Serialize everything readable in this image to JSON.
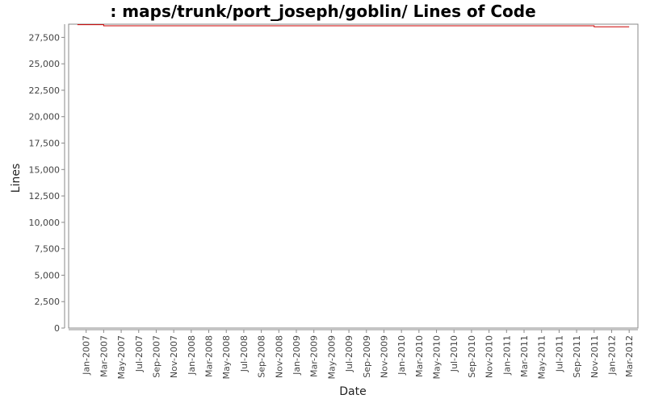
{
  "chart_data": {
    "type": "line",
    "title": ": maps/trunk/port_joseph/goblin/ Lines of Code",
    "xlabel": "Date",
    "ylabel": "Lines",
    "ylim": [
      0,
      28750
    ],
    "yticks": [
      0,
      2500,
      5000,
      7500,
      10000,
      12500,
      15000,
      17500,
      20000,
      22500,
      25000,
      27500
    ],
    "ytick_labels": [
      "0",
      "2,500",
      "5,000",
      "7,500",
      "10,000",
      "12,500",
      "15,000",
      "17,500",
      "20,000",
      "22,500",
      "25,000",
      "27,500"
    ],
    "xlim": [
      "2006-11",
      "2012-04"
    ],
    "xticks": [
      "2007-01",
      "2007-03",
      "2007-05",
      "2007-07",
      "2007-09",
      "2007-11",
      "2008-01",
      "2008-03",
      "2008-05",
      "2008-07",
      "2008-09",
      "2008-11",
      "2009-01",
      "2009-03",
      "2009-05",
      "2009-07",
      "2009-09",
      "2009-11",
      "2010-01",
      "2010-03",
      "2010-05",
      "2010-07",
      "2010-09",
      "2010-11",
      "2011-01",
      "2011-03",
      "2011-05",
      "2011-07",
      "2011-09",
      "2011-11",
      "2012-01",
      "2012-03"
    ],
    "xtick_labels": [
      "Jan-2007",
      "Mar-2007",
      "May-2007",
      "Jul-2007",
      "Sep-2007",
      "Nov-2007",
      "Jan-2008",
      "Mar-2008",
      "May-2008",
      "Jul-2008",
      "Sep-2008",
      "Nov-2008",
      "Jan-2009",
      "Mar-2009",
      "May-2009",
      "Jul-2009",
      "Sep-2009",
      "Nov-2009",
      "Jan-2010",
      "Mar-2010",
      "May-2010",
      "Jul-2010",
      "Sep-2010",
      "Nov-2010",
      "Jan-2011",
      "Mar-2011",
      "May-2011",
      "Jul-2011",
      "Sep-2011",
      "Nov-2011",
      "Jan-2012",
      "Mar-2012"
    ],
    "series": [
      {
        "color": "#cc0000",
        "step": true,
        "points": [
          {
            "x": "2006-12",
            "y": 28700
          },
          {
            "x": "2007-03",
            "y": 28600
          },
          {
            "x": "2011-11",
            "y": 28500
          },
          {
            "x": "2012-03",
            "y": 28500
          }
        ]
      }
    ],
    "grid": false,
    "legend": "none"
  }
}
